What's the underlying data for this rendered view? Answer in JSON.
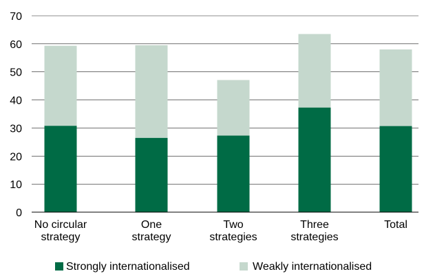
{
  "chart_data": {
    "type": "bar",
    "stacked": true,
    "categories": [
      [
        "No circular",
        "strategy"
      ],
      [
        "One",
        "strategy"
      ],
      [
        "Two",
        "strategies"
      ],
      [
        "Three",
        "strategies"
      ],
      [
        "Total"
      ]
    ],
    "series": [
      {
        "name": "Strongly internationalised",
        "color": "#006b45",
        "values": [
          30.8,
          26.5,
          27.3,
          37.3,
          30.7
        ]
      },
      {
        "name": "Weakly internationalised",
        "color": "#c5d8cd",
        "values": [
          28.5,
          33.0,
          19.8,
          26.2,
          27.3
        ]
      }
    ],
    "y_ticks": [
      0,
      10,
      20,
      30,
      40,
      50,
      60,
      70
    ],
    "ylim": [
      0,
      70
    ],
    "grid": true,
    "legend_position": "bottom"
  }
}
